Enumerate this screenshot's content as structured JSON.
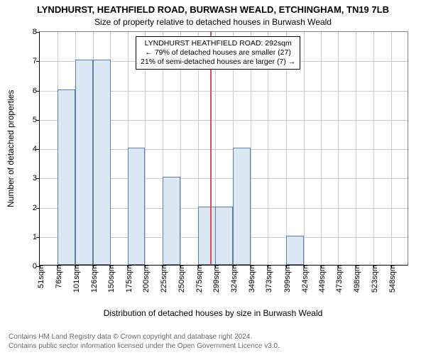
{
  "title_main": "LYNDHURST, HEATHFIELD ROAD, BURWASH WEALD, ETCHINGHAM, TN19 7LB",
  "title_sub": "Size of property relative to detached houses in Burwash Weald",
  "y_axis_label": "Number of detached properties",
  "x_axis_label": "Distribution of detached houses by size in Burwash Weald",
  "chart": {
    "type": "histogram",
    "x_min": 51,
    "x_max": 573,
    "bin_width": 25,
    "x_ticks": [
      51,
      76,
      101,
      126,
      150,
      175,
      200,
      225,
      250,
      275,
      299,
      324,
      349,
      373,
      399,
      424,
      449,
      473,
      498,
      523,
      548
    ],
    "x_tick_labels": [
      "51sqm",
      "76sqm",
      "101sqm",
      "126sqm",
      "150sqm",
      "175sqm",
      "200sqm",
      "225sqm",
      "250sqm",
      "275sqm",
      "299sqm",
      "324sqm",
      "349sqm",
      "373sqm",
      "399sqm",
      "424sqm",
      "449sqm",
      "473sqm",
      "498sqm",
      "523sqm",
      "548sqm"
    ],
    "y_min": 0,
    "y_max": 8,
    "y_ticks": [
      0,
      1,
      2,
      3,
      4,
      5,
      6,
      7,
      8
    ],
    "bar_color": "#dbe7f3",
    "bar_border_color": "#5a7fa8",
    "grid_color": "#cccccc",
    "background_color": "#ffffff",
    "marker_value": 292,
    "marker_color": "#cc5555",
    "bins": [
      {
        "start": 51,
        "count": 0
      },
      {
        "start": 76,
        "count": 6
      },
      {
        "start": 101,
        "count": 7
      },
      {
        "start": 126,
        "count": 7
      },
      {
        "start": 150,
        "count": 0
      },
      {
        "start": 175,
        "count": 4
      },
      {
        "start": 200,
        "count": 0
      },
      {
        "start": 225,
        "count": 3
      },
      {
        "start": 250,
        "count": 0
      },
      {
        "start": 275,
        "count": 2
      },
      {
        "start": 299,
        "count": 2
      },
      {
        "start": 324,
        "count": 4
      },
      {
        "start": 349,
        "count": 0
      },
      {
        "start": 373,
        "count": 0
      },
      {
        "start": 399,
        "count": 1
      },
      {
        "start": 424,
        "count": 0
      },
      {
        "start": 449,
        "count": 0
      },
      {
        "start": 473,
        "count": 0
      },
      {
        "start": 498,
        "count": 0
      },
      {
        "start": 523,
        "count": 0
      },
      {
        "start": 548,
        "count": 0
      }
    ]
  },
  "annotation": {
    "line1": "LYNDHURST HEATHFIELD ROAD: 292sqm",
    "line2": "← 79% of detached houses are smaller (27)",
    "line3": "21% of semi-detached houses are larger (7) →",
    "border_color": "#000000",
    "background_color": "#ffffff",
    "fontsize": 10.5
  },
  "footer": {
    "line1": "Contains HM Land Registry data © Crown copyright and database right 2024.",
    "line2": "Contains public sector information licensed under the Open Government Licence v3.0.",
    "color": "#6b6b6b"
  }
}
